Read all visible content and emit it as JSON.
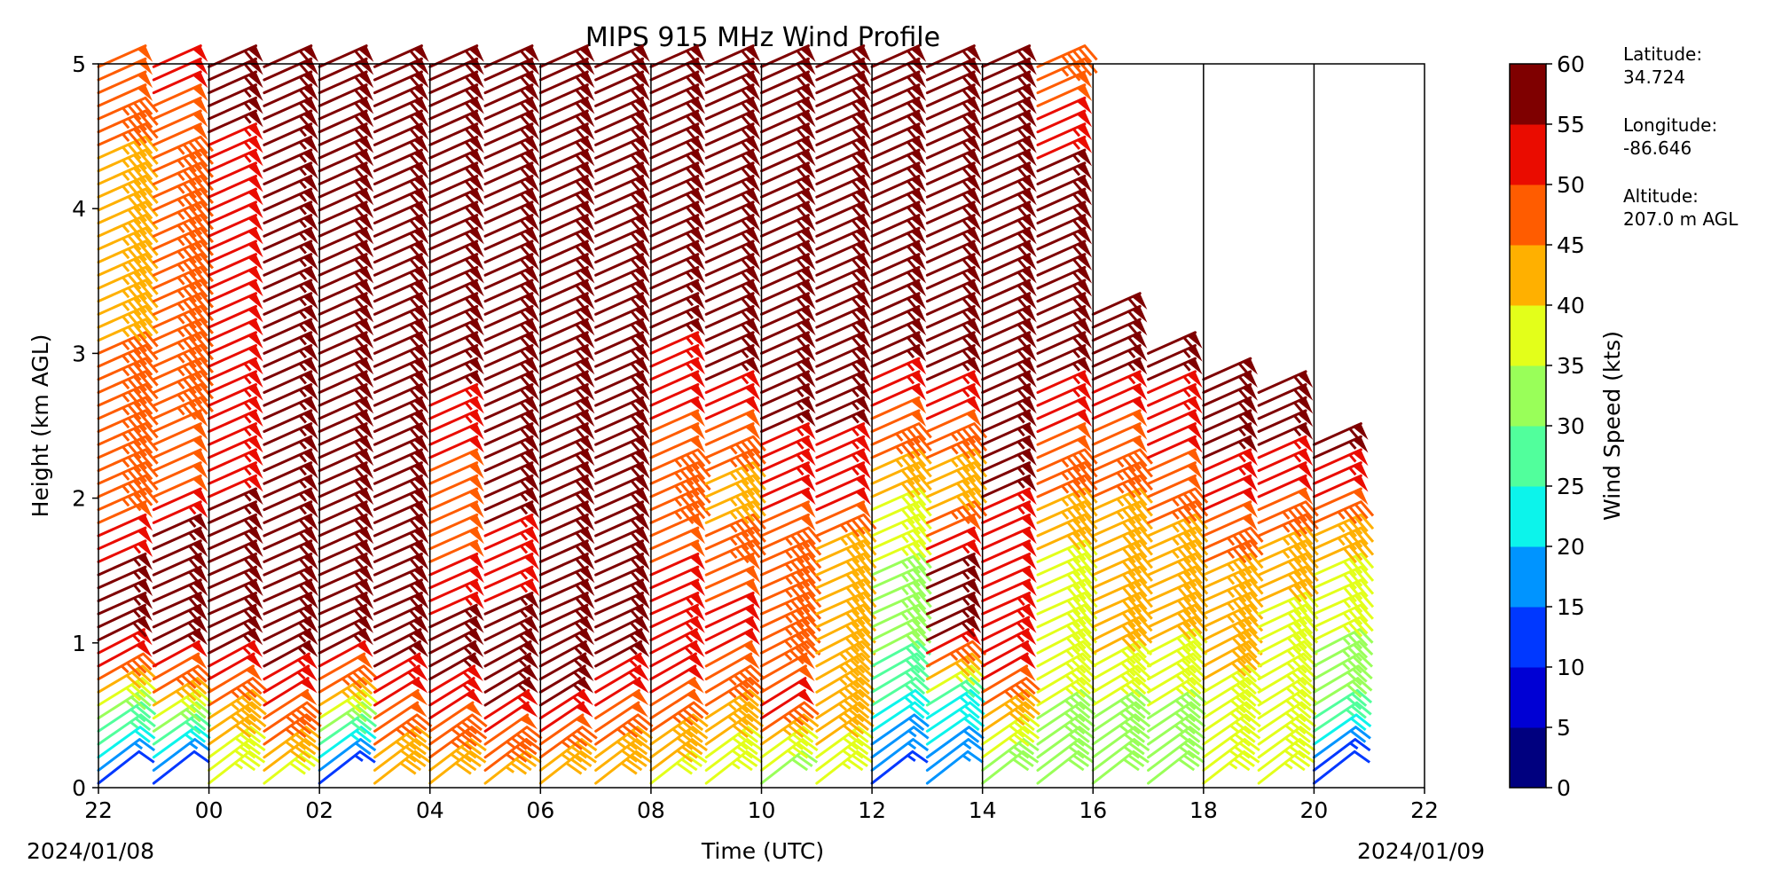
{
  "chart_data": {
    "type": "wind_barb_time_height",
    "title": "MIPS 915 MHz Wind Profile",
    "xlabel": "Time (UTC)",
    "ylabel": "Height (km AGL)",
    "x_ticks": [
      "22",
      "00",
      "02",
      "04",
      "06",
      "08",
      "10",
      "12",
      "14",
      "16",
      "18",
      "20",
      "22"
    ],
    "x_range_hours_utc": [
      22,
      46
    ],
    "y_ticks": [
      "0",
      "1",
      "2",
      "3",
      "4",
      "5"
    ],
    "ylim_km": [
      0,
      5
    ],
    "date_start": "2024/01/08",
    "date_end": "2024/01/09",
    "profile_times_utc": [
      "22:00",
      "23:00",
      "00:00",
      "01:00",
      "02:00",
      "03:00",
      "04:00",
      "05:00",
      "06:00",
      "07:00",
      "08:00",
      "09:00",
      "10:00",
      "11:00",
      "12:00",
      "13:00",
      "14:00",
      "15:00",
      "16:00",
      "17:00",
      "18:00",
      "19:00",
      "20:00"
    ],
    "profile_top_km": [
      5,
      5,
      5,
      5,
      5,
      5,
      5,
      5,
      5,
      5,
      5,
      5,
      5,
      5,
      5,
      5,
      5,
      5,
      3.3,
      3.05,
      2.85,
      2.8,
      2.4
    ],
    "speed_profiles": [
      {
        "time": "22:00",
        "heights_km": [
          0,
          0.5,
          1,
          1.5,
          2,
          3,
          4,
          5
        ],
        "speed_kts": [
          10,
          35,
          58,
          55,
          45,
          45,
          42,
          50
        ]
      },
      {
        "time": "23:00",
        "heights_km": [
          0,
          0.5,
          1,
          1.5,
          2,
          3,
          4,
          5
        ],
        "speed_kts": [
          10,
          40,
          58,
          60,
          50,
          45,
          45,
          52
        ]
      },
      {
        "time": "00:00",
        "heights_km": [
          0,
          0.5,
          1,
          1.5,
          2,
          3,
          4,
          5
        ],
        "speed_kts": [
          35,
          45,
          58,
          60,
          55,
          52,
          50,
          60
        ]
      },
      {
        "time": "01:00",
        "heights_km": [
          0,
          0.5,
          1,
          1.5,
          2,
          3,
          4,
          5
        ],
        "speed_kts": [
          38,
          50,
          58,
          60,
          55,
          55,
          55,
          60
        ]
      },
      {
        "time": "02:00",
        "heights_km": [
          0,
          0.5,
          1,
          1.5,
          2,
          3,
          4,
          5
        ],
        "speed_kts": [
          12,
          40,
          58,
          60,
          58,
          60,
          60,
          60
        ]
      },
      {
        "time": "03:00",
        "heights_km": [
          0,
          0.5,
          1,
          1.5,
          2,
          3,
          4,
          5
        ],
        "speed_kts": [
          40,
          50,
          58,
          60,
          60,
          58,
          60,
          60
        ]
      },
      {
        "time": "04:00",
        "heights_km": [
          0,
          0.5,
          1,
          1.5,
          2,
          3,
          4,
          5
        ],
        "speed_kts": [
          40,
          52,
          58,
          50,
          48,
          58,
          60,
          60
        ]
      },
      {
        "time": "05:00",
        "heights_km": [
          0,
          0.5,
          1,
          1.5,
          2,
          3,
          4,
          5
        ],
        "speed_kts": [
          42,
          55,
          58,
          52,
          58,
          60,
          60,
          60
        ]
      },
      {
        "time": "06:00",
        "heights_km": [
          0,
          0.5,
          1,
          1.5,
          2,
          3,
          4,
          5
        ],
        "speed_kts": [
          40,
          55,
          58,
          60,
          60,
          60,
          60,
          60
        ]
      },
      {
        "time": "07:00",
        "heights_km": [
          0,
          0.5,
          1,
          1.5,
          2,
          3,
          4,
          5
        ],
        "speed_kts": [
          40,
          50,
          58,
          60,
          60,
          60,
          60,
          60
        ]
      },
      {
        "time": "08:00",
        "heights_km": [
          0,
          0.5,
          1,
          1.5,
          2,
          3,
          4,
          5
        ],
        "speed_kts": [
          38,
          48,
          55,
          50,
          45,
          55,
          60,
          60
        ]
      },
      {
        "time": "09:00",
        "heights_km": [
          0,
          0.5,
          1,
          1.5,
          2,
          3,
          4,
          5
        ],
        "speed_kts": [
          35,
          45,
          52,
          48,
          42,
          58,
          60,
          60
        ]
      },
      {
        "time": "10:00",
        "heights_km": [
          0,
          0.5,
          1,
          1.5,
          2,
          3,
          4,
          5
        ],
        "speed_kts": [
          30,
          52,
          45,
          45,
          52,
          60,
          60,
          60
        ]
      },
      {
        "time": "11:00",
        "heights_km": [
          0,
          0.5,
          1,
          1.5,
          2,
          3,
          4,
          5
        ],
        "speed_kts": [
          35,
          45,
          42,
          40,
          52,
          60,
          60,
          60
        ]
      },
      {
        "time": "12:00",
        "heights_km": [
          0,
          0.5,
          1,
          1.5,
          2,
          3,
          4,
          5
        ],
        "speed_kts": [
          12,
          25,
          32,
          35,
          40,
          58,
          60,
          60
        ]
      },
      {
        "time": "13:00",
        "heights_km": [
          0,
          0.5,
          1,
          1.5,
          2,
          3,
          4,
          5
        ],
        "speed_kts": [
          15,
          25,
          58,
          55,
          40,
          60,
          60,
          60
        ]
      },
      {
        "time": "14:00",
        "heights_km": [
          0,
          0.5,
          1,
          1.5,
          2,
          3,
          4,
          5
        ],
        "speed_kts": [
          30,
          45,
          55,
          50,
          55,
          60,
          60,
          60
        ]
      },
      {
        "time": "15:00",
        "heights_km": [
          0,
          0.5,
          1,
          1.5,
          2,
          3,
          4,
          5
        ],
        "speed_kts": [
          30,
          35,
          38,
          38,
          45,
          58,
          60,
          45
        ]
      },
      {
        "time": "16:00",
        "heights_km": [
          0,
          0.5,
          1,
          1.5,
          2,
          2.5,
          3,
          3.3
        ],
        "speed_kts": [
          30,
          35,
          42,
          40,
          45,
          50,
          58,
          60
        ]
      },
      {
        "time": "17:00",
        "heights_km": [
          0,
          0.5,
          1,
          1.5,
          2,
          2.5,
          3,
          3.05
        ],
        "speed_kts": [
          30,
          35,
          40,
          42,
          48,
          52,
          58,
          60
        ]
      },
      {
        "time": "18:00",
        "heights_km": [
          0,
          0.5,
          1,
          1.5,
          2,
          2.5,
          2.85
        ],
        "speed_kts": [
          35,
          38,
          42,
          45,
          52,
          58,
          60
        ]
      },
      {
        "time": "19:00",
        "heights_km": [
          0,
          0.5,
          1,
          1.5,
          2,
          2.5,
          2.8
        ],
        "speed_kts": [
          35,
          35,
          38,
          42,
          50,
          58,
          60
        ]
      },
      {
        "time": "20:00",
        "heights_km": [
          0,
          0.5,
          1,
          1.5,
          2,
          2.4
        ],
        "speed_kts": [
          10,
          30,
          35,
          40,
          50,
          60
        ]
      }
    ],
    "colorbar": {
      "label": "Wind Speed (kts)",
      "ticks": [
        "0",
        "5",
        "10",
        "15",
        "20",
        "25",
        "30",
        "35",
        "40",
        "45",
        "50",
        "55",
        "60"
      ],
      "bins_kts": [
        [
          0,
          5
        ],
        [
          5,
          10
        ],
        [
          10,
          15
        ],
        [
          15,
          20
        ],
        [
          20,
          25
        ],
        [
          25,
          30
        ],
        [
          30,
          35
        ],
        [
          35,
          40
        ],
        [
          40,
          45
        ],
        [
          45,
          50
        ],
        [
          50,
          55
        ],
        [
          55,
          60
        ]
      ],
      "colors": [
        "#00007f",
        "#0000d4",
        "#0038ff",
        "#0094ff",
        "#0cf4eb",
        "#51ff9c",
        "#99ff59",
        "#e3ff1a",
        "#ffb000",
        "#ff5c00",
        "#ea0c00",
        "#7f0000"
      ]
    },
    "grid": "vertical lines at each 2-hour tick"
  },
  "station": {
    "latitude_label": "Latitude:",
    "latitude_value": "34.724",
    "longitude_label": "Longitude:",
    "longitude_value": "-86.646",
    "altitude_label": "Altitude:",
    "altitude_value": "207.0 m AGL"
  }
}
